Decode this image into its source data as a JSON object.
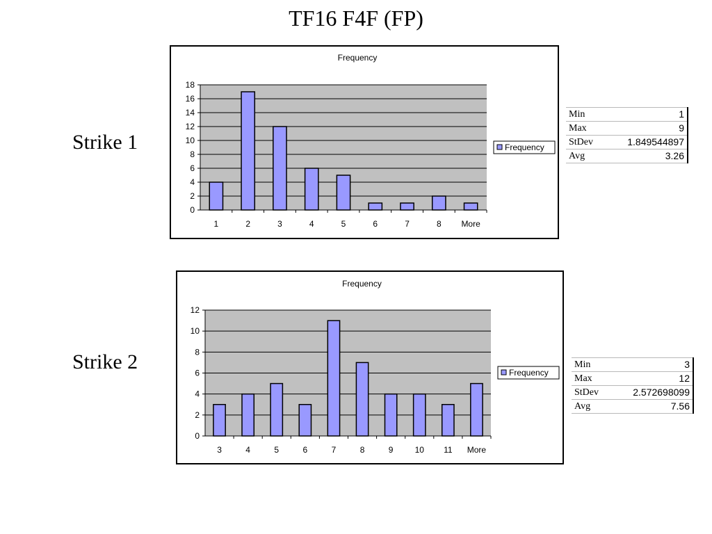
{
  "title": "TF16 F4F (FP)",
  "strikes": [
    {
      "label": "Strike 1",
      "stats": [
        {
          "name": "Min",
          "value": "1"
        },
        {
          "name": "Max",
          "value": "9"
        },
        {
          "name": "StDev",
          "value": "1.849544897"
        },
        {
          "name": "Avg",
          "value": "3.26"
        }
      ]
    },
    {
      "label": "Strike 2",
      "stats": [
        {
          "name": "Min",
          "value": "3"
        },
        {
          "name": "Max",
          "value": "12"
        },
        {
          "name": "StDev",
          "value": "2.572698099"
        },
        {
          "name": "Avg",
          "value": "7.56"
        }
      ]
    }
  ],
  "colors": {
    "bar_fill": "#9999ff",
    "bar_stroke": "#000000",
    "plot_bg": "#c0c0c0",
    "gridline": "#000000"
  },
  "chart_data": [
    {
      "type": "bar",
      "title": "Frequency",
      "categories": [
        "1",
        "2",
        "3",
        "4",
        "5",
        "6",
        "7",
        "8",
        "More"
      ],
      "series": [
        {
          "name": "Frequency",
          "values": [
            4,
            17,
            12,
            6,
            5,
            1,
            1,
            2,
            1
          ]
        }
      ],
      "ylim": [
        0,
        18
      ],
      "yticks": [
        0,
        2,
        4,
        6,
        8,
        10,
        12,
        14,
        16,
        18
      ],
      "grid": true,
      "legend": "right"
    },
    {
      "type": "bar",
      "title": "Frequency",
      "categories": [
        "3",
        "4",
        "5",
        "6",
        "7",
        "8",
        "9",
        "10",
        "11",
        "More"
      ],
      "series": [
        {
          "name": "Frequency",
          "values": [
            3,
            4,
            5,
            3,
            11,
            7,
            4,
            4,
            3,
            5
          ]
        }
      ],
      "ylim": [
        0,
        12
      ],
      "yticks": [
        0,
        2,
        4,
        6,
        8,
        10,
        12
      ],
      "grid": true,
      "legend": "right"
    }
  ]
}
